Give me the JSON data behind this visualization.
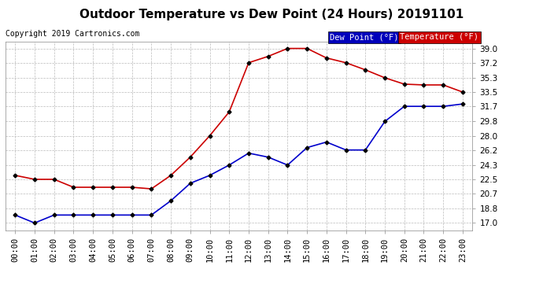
{
  "title": "Outdoor Temperature vs Dew Point (24 Hours) 20191101",
  "copyright": "Copyright 2019 Cartronics.com",
  "hours": [
    "00:00",
    "01:00",
    "02:00",
    "03:00",
    "04:00",
    "05:00",
    "06:00",
    "07:00",
    "08:00",
    "09:00",
    "10:00",
    "11:00",
    "12:00",
    "13:00",
    "14:00",
    "15:00",
    "16:00",
    "17:00",
    "18:00",
    "19:00",
    "20:00",
    "21:00",
    "22:00",
    "23:00"
  ],
  "temperature": [
    23.0,
    22.5,
    22.5,
    21.5,
    21.5,
    21.5,
    21.5,
    21.3,
    23.0,
    25.3,
    28.0,
    31.0,
    37.2,
    38.0,
    39.0,
    39.0,
    37.8,
    37.2,
    36.3,
    35.3,
    34.5,
    34.4,
    34.4,
    33.5
  ],
  "dew_point": [
    18.0,
    17.0,
    18.0,
    18.0,
    18.0,
    18.0,
    18.0,
    18.0,
    19.8,
    22.0,
    23.0,
    24.3,
    25.8,
    25.3,
    24.3,
    26.5,
    27.2,
    26.2,
    26.2,
    29.8,
    31.7,
    31.7,
    31.7,
    32.0
  ],
  "temp_color": "#cc0000",
  "dew_color": "#0000cc",
  "yticks": [
    17.0,
    18.8,
    20.7,
    22.5,
    24.3,
    26.2,
    28.0,
    29.8,
    31.7,
    33.5,
    35.3,
    37.2,
    39.0
  ],
  "ylim": [
    16.1,
    39.9
  ],
  "bg_color": "#ffffff",
  "grid_color": "#bbbbbb",
  "legend_dew_bg": "#0000bb",
  "legend_temp_bg": "#cc0000",
  "title_fontsize": 11,
  "copyright_fontsize": 7,
  "tick_fontsize": 7.5,
  "marker": "D",
  "marker_size": 2.5,
  "marker_color": "#000000",
  "line_width": 1.2
}
